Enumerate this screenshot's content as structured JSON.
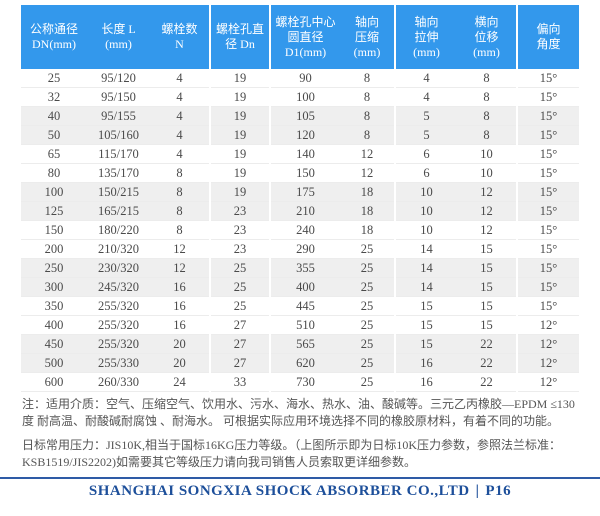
{
  "table": {
    "columns": [
      {
        "id": "dn",
        "lines": [
          "公称通径",
          "DN(mm)"
        ]
      },
      {
        "id": "length",
        "lines": [
          "长度 L",
          "(mm)"
        ]
      },
      {
        "id": "bolt_count",
        "lines": [
          "螺栓数",
          "N"
        ]
      },
      {
        "id": "bolt_hole_dia",
        "lines": [
          "螺栓孔直",
          "径 Dn"
        ]
      },
      {
        "id": "bolt_circle_dia",
        "lines": [
          "螺栓孔中心",
          "圆直径",
          "D1(mm)"
        ]
      },
      {
        "id": "axial_compression",
        "lines": [
          "轴向",
          "压缩",
          "(mm)"
        ]
      },
      {
        "id": "axial_extension",
        "lines": [
          "轴向",
          "拉伸",
          "(mm)"
        ]
      },
      {
        "id": "lateral_displacement",
        "lines": [
          "横向",
          "位移",
          "(mm)"
        ]
      },
      {
        "id": "deflection_angle",
        "lines": [
          "偏向",
          "角度"
        ]
      }
    ],
    "rows": [
      [
        "25",
        "95/120",
        "4",
        "19",
        "90",
        "8",
        "4",
        "8",
        "15°"
      ],
      [
        "32",
        "95/150",
        "4",
        "19",
        "100",
        "8",
        "4",
        "8",
        "15°"
      ],
      [
        "40",
        "95/155",
        "4",
        "19",
        "105",
        "8",
        "5",
        "8",
        "15°"
      ],
      [
        "50",
        "105/160",
        "4",
        "19",
        "120",
        "8",
        "5",
        "8",
        "15°"
      ],
      [
        "65",
        "115/170",
        "4",
        "19",
        "140",
        "12",
        "6",
        "10",
        "15°"
      ],
      [
        "80",
        "135/170",
        "8",
        "19",
        "150",
        "12",
        "6",
        "10",
        "15°"
      ],
      [
        "100",
        "150/215",
        "8",
        "19",
        "175",
        "18",
        "10",
        "12",
        "15°"
      ],
      [
        "125",
        "165/215",
        "8",
        "23",
        "210",
        "18",
        "10",
        "12",
        "15°"
      ],
      [
        "150",
        "180/220",
        "8",
        "23",
        "240",
        "18",
        "10",
        "12",
        "15°"
      ],
      [
        "200",
        "210/320",
        "12",
        "23",
        "290",
        "25",
        "14",
        "15",
        "15°"
      ],
      [
        "250",
        "230/320",
        "12",
        "25",
        "355",
        "25",
        "14",
        "15",
        "15°"
      ],
      [
        "300",
        "245/320",
        "16",
        "25",
        "400",
        "25",
        "14",
        "15",
        "15°"
      ],
      [
        "350",
        "255/320",
        "16",
        "25",
        "445",
        "25",
        "15",
        "15",
        "15°"
      ],
      [
        "400",
        "255/320",
        "16",
        "27",
        "510",
        "25",
        "15",
        "15",
        "12°"
      ],
      [
        "450",
        "255/320",
        "20",
        "27",
        "565",
        "25",
        "15",
        "22",
        "12°"
      ],
      [
        "500",
        "255/330",
        "20",
        "27",
        "620",
        "25",
        "16",
        "22",
        "12°"
      ],
      [
        "600",
        "260/330",
        "24",
        "33",
        "730",
        "25",
        "16",
        "22",
        "12°"
      ]
    ]
  },
  "notes": [
    "注：适用介质：空气、压缩空气、饮用水、污水、海水、热水、油、酸碱等。三元乙丙橡胶—EPDM ≤130度 耐高温、耐酸碱耐腐蚀 、耐海水。 可根据实际应用环境选择不同的橡胶原材料，有着不同的功能。",
    "日标常用压力：JIS10K,相当于国标16KG压力等级。（上图所示即为日标10K压力参数，参照法兰标准：KSB1519/JIS2202)如需要其它等级压力请向我司销售人员索取更详细参数。"
  ],
  "footer": {
    "company": "SHANGHAI SONGXIA SHOCK ABSORBER CO.,LTD",
    "separator": "|",
    "page_number": "P16"
  },
  "colors": {
    "header_bg": "#3398ec",
    "header_text": "#ffffff",
    "alt_row_bg": "#efefef",
    "row_divider": "#ececec",
    "body_text": "#4a4a4a",
    "note_text": "#555555",
    "footer_blue": "#1d4f9a",
    "footer_divider": "#2e5ba6"
  }
}
